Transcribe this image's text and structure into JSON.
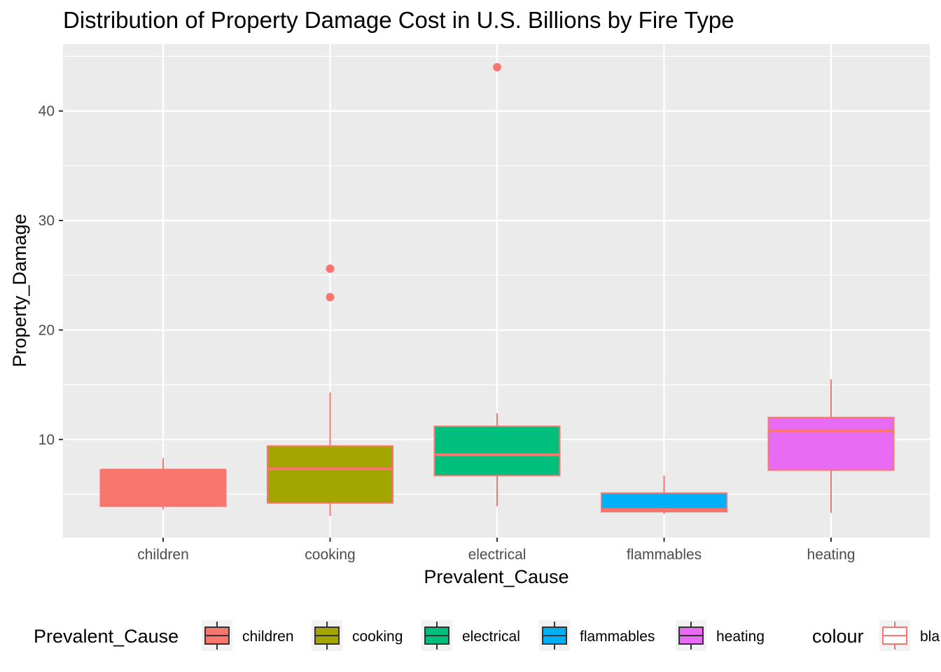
{
  "chart_data": {
    "type": "boxplot",
    "title": "Distribution of Property Damage Cost in U.S. Billions by Fire Type",
    "xlabel": "Prevalent_Cause",
    "ylabel": "Property_Damage",
    "ylim": [
      0,
      45
    ],
    "y_ticks": [
      "10",
      "20",
      "30",
      "40"
    ],
    "grid": true,
    "outline_color": "#F8766D",
    "categories": [
      "children",
      "cooking",
      "electrical",
      "flammables",
      "heating"
    ],
    "series": [
      {
        "category": "children",
        "fill": "#F8766D",
        "lower_whisker": 3.6,
        "q1": 3.9,
        "median": 7.2,
        "q3": 7.2,
        "upper_whisker": 8.3,
        "outliers": []
      },
      {
        "category": "cooking",
        "fill": "#A3A500",
        "lower_whisker": 3.0,
        "q1": 4.2,
        "median": 7.3,
        "q3": 9.4,
        "upper_whisker": 14.3,
        "outliers": [
          23.0,
          25.6
        ]
      },
      {
        "category": "electrical",
        "fill": "#00BF7D",
        "lower_whisker": 3.9,
        "q1": 6.7,
        "median": 8.6,
        "q3": 11.2,
        "upper_whisker": 12.4,
        "outliers": [
          44.0
        ]
      },
      {
        "category": "flammables",
        "fill": "#00B0F6",
        "lower_whisker": 3.2,
        "q1": 3.4,
        "median": 3.6,
        "q3": 5.1,
        "upper_whisker": 6.7,
        "outliers": []
      },
      {
        "category": "heating",
        "fill": "#E76BF3",
        "lower_whisker": 3.3,
        "q1": 7.2,
        "median": 10.8,
        "q3": 12.0,
        "upper_whisker": 15.5,
        "outliers": []
      }
    ],
    "legend": {
      "placement": "bottom",
      "fill_title": "Prevalent_Cause",
      "fill_entries": [
        "children",
        "cooking",
        "electrical",
        "flammables",
        "heating"
      ],
      "colour_title": "colour",
      "colour_entries": [
        "bla"
      ]
    }
  }
}
